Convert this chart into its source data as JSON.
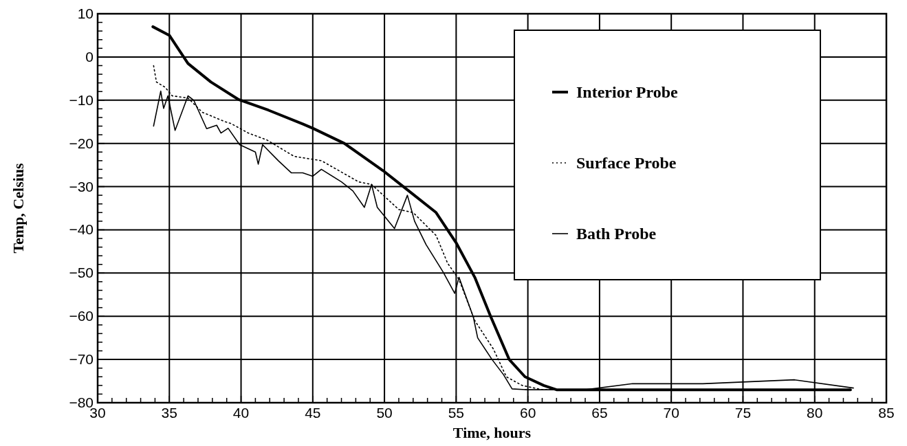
{
  "chart_data": {
    "type": "line",
    "xlabel": "Time, hours",
    "ylabel": "Temp, Celsius",
    "xlim": [
      30,
      85
    ],
    "ylim": [
      -80,
      10
    ],
    "xticks": [
      30,
      {
        "value": 31,
        "label": null
      },
      {
        "value": 32,
        "label": null
      },
      {
        "value": 33,
        "label": null
      },
      {
        "value": 34,
        "label": null
      },
      35,
      {
        "value": 36,
        "label": null
      },
      {
        "value": 37,
        "label": null
      },
      {
        "value": 38,
        "label": null
      },
      {
        "value": 39,
        "label": null
      },
      40,
      {
        "value": 41,
        "label": null
      },
      {
        "value": 42,
        "label": null
      },
      {
        "value": 43,
        "label": null
      },
      {
        "value": 44,
        "label": null
      },
      45,
      {
        "value": 46,
        "label": null
      },
      {
        "value": 47,
        "label": null
      },
      {
        "value": 48,
        "label": null
      },
      {
        "value": 49,
        "label": null
      },
      50,
      {
        "value": 51,
        "label": null
      },
      {
        "value": 52,
        "label": null
      },
      {
        "value": 53,
        "label": null
      },
      {
        "value": 54,
        "label": null
      },
      55,
      {
        "value": 56,
        "label": null
      },
      {
        "value": 57,
        "label": null
      },
      {
        "value": 58,
        "label": null
      },
      {
        "value": 59,
        "label": null
      },
      60,
      {
        "value": 61,
        "label": null
      },
      {
        "value": 62,
        "label": null
      },
      {
        "value": 63,
        "label": null
      },
      {
        "value": 64,
        "label": null
      },
      65,
      {
        "value": 66,
        "label": null
      },
      {
        "value": 67,
        "label": null
      },
      {
        "value": 68,
        "label": null
      },
      {
        "value": 69,
        "label": null
      },
      70,
      {
        "value": 71,
        "label": null
      },
      {
        "value": 72,
        "label": null
      },
      {
        "value": 73,
        "label": null
      },
      {
        "value": 74,
        "label": null
      },
      75,
      {
        "value": 76,
        "label": null
      },
      {
        "value": 77,
        "label": null
      },
      {
        "value": 78,
        "label": null
      },
      {
        "value": 79,
        "label": null
      },
      80,
      {
        "value": 81,
        "label": null
      },
      {
        "value": 82,
        "label": null
      },
      {
        "value": 83,
        "label": null
      },
      {
        "value": 84,
        "label": null
      },
      85
    ],
    "yticks": [
      -80,
      {
        "value": -78,
        "label": null
      },
      {
        "value": -76,
        "label": null
      },
      {
        "value": -74,
        "label": null
      },
      {
        "value": -72,
        "label": null
      },
      -70,
      {
        "value": -68,
        "label": null
      },
      {
        "value": -66,
        "label": null
      },
      {
        "value": -64,
        "label": null
      },
      {
        "value": -62,
        "label": null
      },
      -60,
      {
        "value": -58,
        "label": null
      },
      {
        "value": -56,
        "label": null
      },
      {
        "value": -54,
        "label": null
      },
      {
        "value": -52,
        "label": null
      },
      -50,
      {
        "value": -48,
        "label": null
      },
      {
        "value": -46,
        "label": null
      },
      {
        "value": -44,
        "label": null
      },
      {
        "value": -42,
        "label": null
      },
      -40,
      {
        "value": -38,
        "label": null
      },
      {
        "value": -36,
        "label": null
      },
      {
        "value": -34,
        "label": null
      },
      {
        "value": -32,
        "label": null
      },
      -30,
      {
        "value": -28,
        "label": null
      },
      {
        "value": -26,
        "label": null
      },
      {
        "value": -24,
        "label": null
      },
      {
        "value": -22,
        "label": null
      },
      -20,
      {
        "value": -18,
        "label": null
      },
      {
        "value": -16,
        "label": null
      },
      {
        "value": -14,
        "label": null
      },
      {
        "value": -12,
        "label": null
      },
      -10,
      {
        "value": -8,
        "label": null
      },
      {
        "value": -6,
        "label": null
      },
      {
        "value": -4,
        "label": null
      },
      {
        "value": -2,
        "label": null
      },
      0,
      {
        "value": 2,
        "label": null
      },
      {
        "value": 4,
        "label": null
      },
      {
        "value": 6,
        "label": null
      },
      {
        "value": 8,
        "label": null
      },
      10
    ],
    "grid": true,
    "legend": "top right",
    "series": [
      {
        "name": "Interior Probe",
        "color": "#000000",
        "line_style": "solid",
        "x": [
          33.85,
          35,
          36.3,
          37.9,
          39.8,
          41.9,
          44.3,
          45,
          47.2,
          49.9,
          51.7,
          53.6,
          55,
          56.3,
          57.4,
          58.7,
          59.8,
          61.1,
          62,
          65,
          70,
          75,
          80,
          82.5
        ],
        "values": [
          7,
          5,
          -1.5,
          -5.8,
          -9.8,
          -12.3,
          -15.5,
          -16.5,
          -20,
          -26.3,
          -31,
          -36,
          -43,
          -51,
          -60,
          -70,
          -74,
          -76,
          -77,
          -77,
          -77,
          -77,
          -77,
          -77
        ]
      },
      {
        "name": "Surface Probe",
        "color": "#000000",
        "line_style": "dotted",
        "x": [
          33.9,
          34.1,
          34.7,
          35.2,
          36.3,
          37.3,
          38.9,
          39.3,
          40.5,
          41.8,
          43.7,
          45.6,
          48.2,
          49.1,
          51,
          52,
          53.6,
          54.4,
          55.2,
          56.3,
          57.6,
          58.5,
          59.6,
          61,
          62
        ],
        "values": [
          -2,
          -5.8,
          -7,
          -9,
          -9.5,
          -12.8,
          -15,
          -15.4,
          -17.6,
          -19.2,
          -23,
          -24,
          -28.9,
          -29.5,
          -35.3,
          -36,
          -41.3,
          -47.7,
          -51.5,
          -61,
          -67.6,
          -74,
          -76,
          -77,
          -77
        ]
      },
      {
        "name": "Bath Probe",
        "color": "#000000",
        "line_style": "solid",
        "x": [
          33.9,
          34.4,
          34.6,
          34.9,
          35.4,
          36.3,
          36.7,
          37.6,
          38.3,
          38.6,
          39.1,
          39.9,
          41,
          41.2,
          41.5,
          42.6,
          43.5,
          44.3,
          45,
          45.6,
          47,
          47.8,
          48.6,
          49.1,
          49.5,
          50.7,
          51.6,
          52.1,
          52.9,
          54.1,
          54.9,
          55.2,
          56.2,
          56.5,
          57.5,
          58.3,
          58.9,
          60,
          62,
          64,
          67.3,
          72.2,
          78.6,
          82.7
        ],
        "values": [
          -16,
          -7.9,
          -11.9,
          -9,
          -17,
          -9,
          -10,
          -16.6,
          -15.8,
          -17.6,
          -16.5,
          -20.3,
          -22,
          -24.8,
          -20.3,
          -24,
          -26.8,
          -26.8,
          -27.6,
          -26,
          -28.9,
          -31,
          -34.8,
          -29.5,
          -34.8,
          -39.7,
          -32,
          -38,
          -43.4,
          -49.8,
          -54.7,
          -51,
          -60.2,
          -65,
          -70,
          -73.5,
          -76.8,
          -77,
          -77,
          -77,
          -75.6,
          -75.6,
          -74.7,
          -76.6
        ]
      }
    ]
  }
}
